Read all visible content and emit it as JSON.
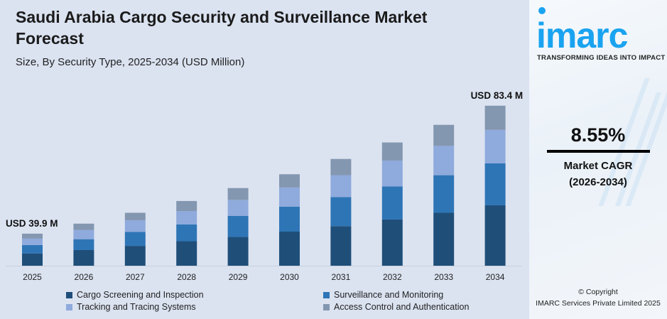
{
  "header": {
    "title": "Saudi Arabia Cargo Security and Surveillance Market Forecast",
    "subtitle": "Size, By Security Type, 2025-2034 (USD Million)"
  },
  "chart_data": {
    "type": "bar",
    "stacked": true,
    "title": "Saudi Arabia Cargo Security and Surveillance Market Forecast",
    "subtitle": "Size, By Security Type, 2025-2034 (USD Million)",
    "categories": [
      "2025",
      "2026",
      "2027",
      "2028",
      "2029",
      "2030",
      "2031",
      "2032",
      "2033",
      "2034"
    ],
    "series": [
      {
        "name": "Cargo Screening and Inspection",
        "color": "#1f4e79",
        "values": [
          15.1,
          16.1,
          17.6,
          19.3,
          20.5,
          22.4,
          24.2,
          26.6,
          28.9,
          31.5
        ]
      },
      {
        "name": "Surveillance and Monitoring",
        "color": "#2e75b6",
        "values": [
          10.6,
          11.2,
          12.5,
          13.2,
          15.1,
          16.4,
          17.8,
          19.0,
          20.5,
          21.9
        ]
      },
      {
        "name": "Tracking and Tracing Systems",
        "color": "#8faadc",
        "values": [
          8.0,
          9.6,
          10.3,
          10.6,
          11.4,
          12.6,
          13.4,
          14.9,
          16.0,
          17.4
        ]
      },
      {
        "name": "Access Control and Authentication",
        "color": "#8497b0",
        "values": [
          6.2,
          6.4,
          6.6,
          7.9,
          8.4,
          8.7,
          9.9,
          10.4,
          11.5,
          12.6
        ]
      }
    ],
    "annotations": [
      {
        "category": "2025",
        "text": "USD 39.9 M"
      },
      {
        "category": "2034",
        "text": "USD 83.4 M"
      }
    ],
    "grid": false,
    "legend_position": "bottom"
  },
  "side": {
    "logo": "imarc",
    "tagline": "TRANSFORMING IDEAS INTO IMPACT",
    "cagr_value": "8.55%",
    "cagr_label": "Market CAGR",
    "cagr_period": "(2026-2034)",
    "copyright": "© Copyright",
    "company": "IMARC Services Private Limited 2025"
  }
}
